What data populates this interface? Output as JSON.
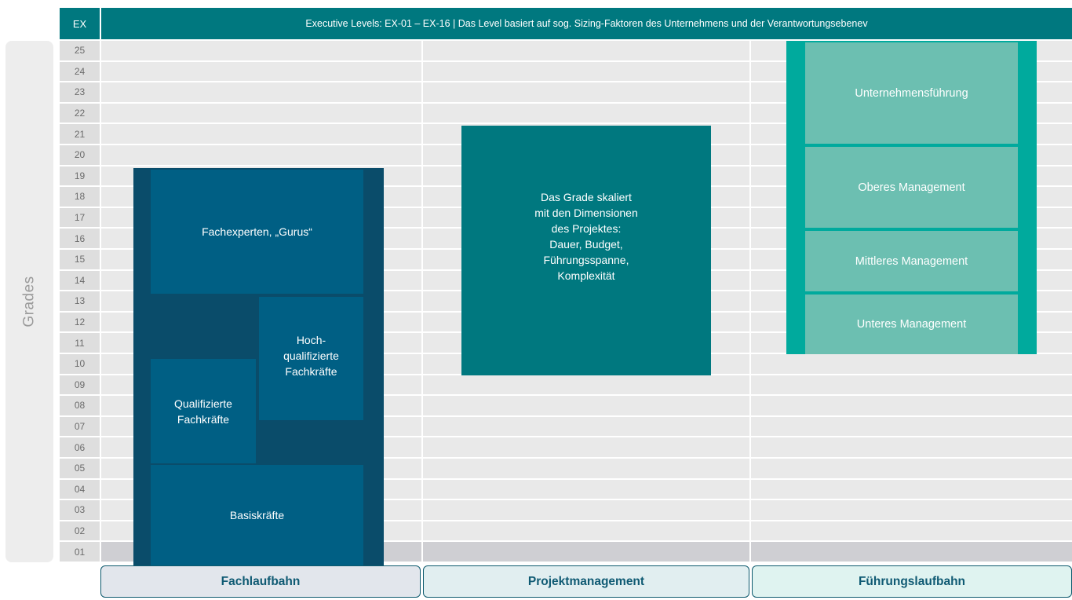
{
  "header": {
    "ex_label": "EX",
    "title": "Executive Levels: EX-01 – EX-16 | Das Level basiert auf sog. Sizing-Faktoren des Unternehmens und der Verantwortungsebenev"
  },
  "axis": {
    "label": "Grades",
    "grades": [
      "25",
      "24",
      "23",
      "22",
      "21",
      "20",
      "19",
      "18",
      "17",
      "16",
      "15",
      "14",
      "13",
      "12",
      "11",
      "10",
      "09",
      "08",
      "07",
      "06",
      "05",
      "04",
      "03",
      "02",
      "01"
    ]
  },
  "fachlaufbahn": {
    "experts": "Fachexperten, „Gurus“",
    "high_qualified": "Hoch-\nqualifizierte\nFachkräfte",
    "qualified": "Qualifizierte\nFachkräfte",
    "basic": "Basiskräfte"
  },
  "projekt": {
    "description": "Das Grade skaliert\nmit den Dimensionen\ndes Projektes:\nDauer, Budget,\nFührungsspanne,\nKomplexität"
  },
  "fuehrung": {
    "levels": [
      "Unternehmensführung",
      "Oberes Management",
      "Mittleres Management",
      "Unteres Management"
    ]
  },
  "careers": [
    {
      "label": "Fachlaufbahn",
      "bg": "#e2e6ec"
    },
    {
      "label": "Projektmanagement",
      "bg": "#e1eef0"
    },
    {
      "label": "Führungslaufbahn",
      "bg": "#dff3f0"
    }
  ],
  "colors": {
    "header": "#00787f",
    "fach_dark": "#0a4c6a",
    "fach_box": "#005f84",
    "projekt": "#00787f",
    "fuehrung_frame": "#00aa9d",
    "fuehrung_box": "#6cbfb1"
  }
}
